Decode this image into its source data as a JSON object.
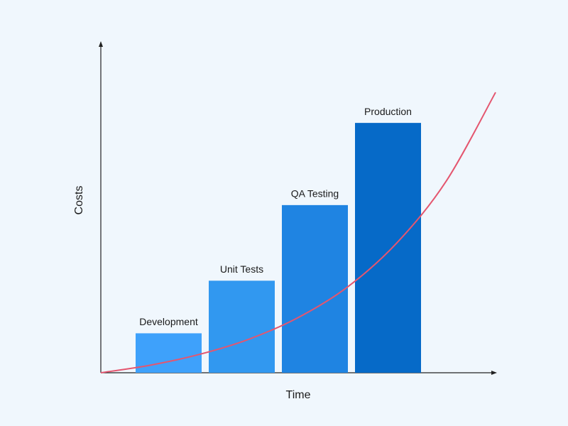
{
  "chart_data": {
    "type": "bar",
    "xlabel": "Time",
    "ylabel": "Costs",
    "categories": [
      "Development",
      "Unit Tests",
      "QA Testing",
      "Production"
    ],
    "values": [
      12,
      28,
      51,
      76
    ],
    "colors": [
      "#3ea1fb",
      "#3198f0",
      "#1f84e2",
      "#066ac8"
    ],
    "ylim": [
      0,
      100
    ],
    "curve": {
      "type": "line",
      "color": "#e4566f",
      "x": [
        0,
        12.5,
        25,
        37.5,
        50,
        62.5,
        75,
        87.5,
        100
      ],
      "values": [
        0,
        2.3,
        5.6,
        10.2,
        16.8,
        26.1,
        39.5,
        58.3,
        85.3
      ],
      "xlim": [
        0,
        100
      ]
    }
  }
}
